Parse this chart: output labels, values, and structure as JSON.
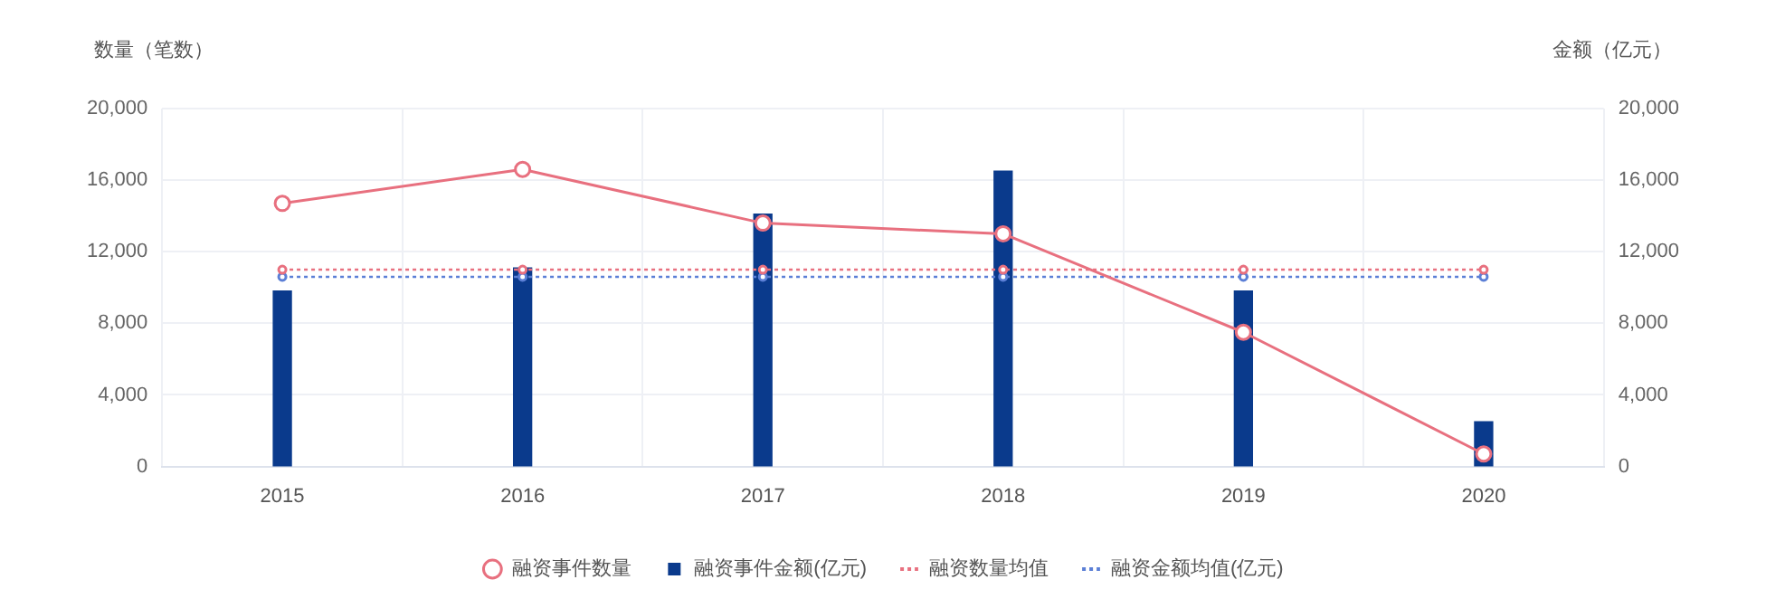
{
  "chart_data": {
    "type": "bar",
    "ylabel": "数量（笔数）",
    "y2label": "金额（亿元）",
    "categories": [
      "2015",
      "2016",
      "2017",
      "2018",
      "2019",
      "2020"
    ],
    "series": [
      {
        "name": "融资事件数量",
        "type": "line",
        "color": "#e8707f",
        "marker": "circle",
        "line_style": "solid",
        "axis": "y",
        "values": [
          14700,
          16600,
          13600,
          13000,
          7500,
          700
        ]
      },
      {
        "name": "融资事件金额(亿元)",
        "color": "#0a3a8c",
        "axis": "y2",
        "values": [
          9800,
          11100,
          14100,
          16500,
          9800,
          2500
        ]
      },
      {
        "name": "融资数量均值",
        "type": "line",
        "color": "#e8707f",
        "marker": "circle",
        "line_style": "dotted",
        "axis": "y",
        "values": [
          11000,
          11000,
          11000,
          11000,
          11000,
          11000
        ]
      },
      {
        "name": "融资金额均值(亿元)",
        "type": "line",
        "color": "#5b7fd6",
        "marker": "circle",
        "line_style": "dotted",
        "axis": "y2",
        "values": [
          10600,
          10600,
          10600,
          10600,
          10600,
          10600
        ]
      }
    ],
    "ylim": [
      0,
      20000
    ],
    "yticks": [
      0,
      {
        "value": 4000,
        "label": "4,000"
      },
      {
        "value": 8000,
        "label": "8,000"
      },
      {
        "value": 12000,
        "label": "12,000"
      },
      {
        "value": 16000,
        "label": "16,000"
      },
      {
        "value": 20000,
        "label": "20,000"
      }
    ],
    "y2lim": [
      0,
      20000
    ],
    "y2ticks": [
      0,
      {
        "value": 4000,
        "label": "4,000"
      },
      {
        "value": 8000,
        "label": "8,000"
      },
      {
        "value": 12000,
        "label": "12,000"
      },
      {
        "value": 16000,
        "label": "16,000"
      },
      {
        "value": 20000,
        "label": "20,000"
      }
    ],
    "grid": true,
    "legend": "bottom"
  }
}
